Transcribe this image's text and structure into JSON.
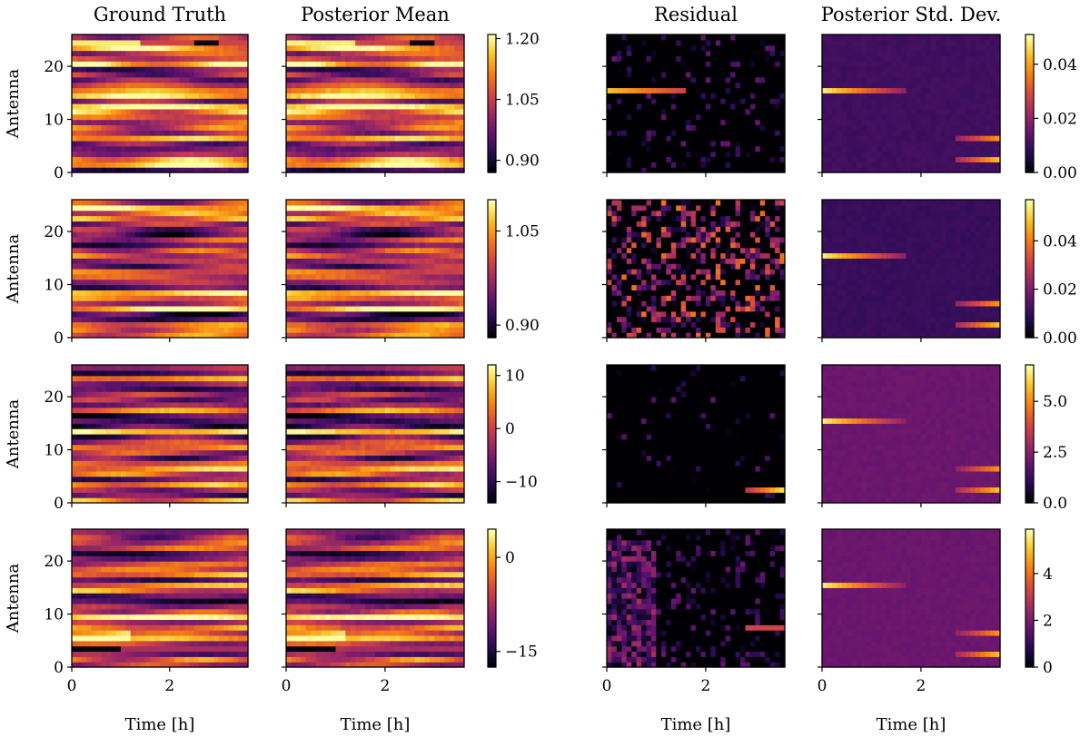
{
  "column_titles": [
    "Ground Truth",
    "Posterior Mean",
    "Residual",
    "Posterior Std. Dev."
  ],
  "axis_labels": {
    "y": "Antenna",
    "x": "Time [h]"
  },
  "colormap": "inferno",
  "chart_data": {
    "type": "heatmap",
    "grid": false,
    "x_axis": {
      "range": [
        0,
        3.6
      ],
      "ticks": [
        0,
        2
      ],
      "tick_labels": [
        "0",
        "2"
      ],
      "label": "Time [h]"
    },
    "y_axis": {
      "range": [
        0,
        26
      ],
      "ticks": [
        0,
        10,
        20
      ],
      "tick_labels": [
        "0",
        "10",
        "20"
      ],
      "label": "Antenna"
    },
    "n_antennas": 26,
    "n_time_bins": 36,
    "rows": [
      {
        "truth_colorbar": {
          "min": 0.87,
          "max": 1.21,
          "ticks": [
            1.2,
            1.05,
            0.9
          ],
          "tick_labels": [
            "1.20",
            "1.05",
            "0.90"
          ]
        },
        "std_colorbar": {
          "min": 0.0,
          "max": 0.051,
          "ticks": [
            0.04,
            0.02,
            0.0
          ],
          "tick_labels": [
            "0.04",
            "0.02",
            "0.00"
          ]
        },
        "residual_colorbar": {
          "min": 0.0,
          "max": 0.05
        }
      },
      {
        "truth_colorbar": {
          "min": 0.88,
          "max": 1.1,
          "ticks": [
            1.05,
            0.9
          ],
          "tick_labels": [
            "1.05",
            "0.90"
          ]
        },
        "std_colorbar": {
          "min": 0.0,
          "max": 0.057,
          "ticks": [
            0.04,
            0.02,
            0.0
          ],
          "tick_labels": [
            "0.04",
            "0.02",
            "0.00"
          ]
        },
        "residual_colorbar": {
          "min": 0.0,
          "max": 0.05
        }
      },
      {
        "truth_colorbar": {
          "min": -14,
          "max": 12,
          "ticks": [
            10,
            0,
            -10
          ],
          "tick_labels": [
            "10",
            "0",
            "−10"
          ]
        },
        "std_colorbar": {
          "min": 0.0,
          "max": 6.8,
          "ticks": [
            5.0,
            2.5,
            0.0
          ],
          "tick_labels": [
            "5.0",
            "2.5",
            "0.0"
          ]
        },
        "residual_colorbar": {
          "min": 0.0,
          "max": 6.0
        }
      },
      {
        "truth_colorbar": {
          "min": -17.5,
          "max": 4.5,
          "ticks": [
            0,
            -15
          ],
          "tick_labels": [
            "0",
            "−15"
          ]
        },
        "std_colorbar": {
          "min": 0.0,
          "max": 5.9,
          "ticks": [
            4,
            2,
            0
          ],
          "tick_labels": [
            "4",
            "2",
            "0"
          ]
        },
        "residual_colorbar": {
          "min": 0.0,
          "max": 5.0
        }
      }
    ]
  }
}
